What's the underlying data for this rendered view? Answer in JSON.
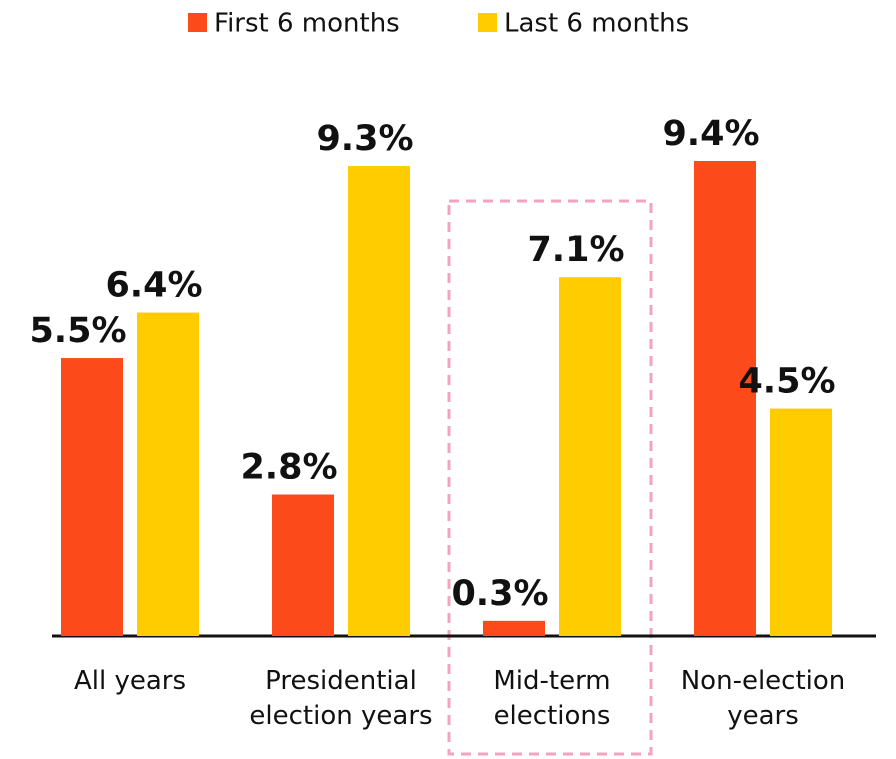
{
  "chart_data": {
    "type": "bar",
    "categories": [
      "All years",
      "Presidential election years",
      "Mid-term elections",
      "Non-election years"
    ],
    "series": [
      {
        "name": "First 6 months",
        "color": "#fc4a1a",
        "values": [
          5.5,
          2.8,
          0.3,
          9.4
        ],
        "value_labels": [
          "5.5%",
          "2.8%",
          "0.3%",
          "9.4%"
        ]
      },
      {
        "name": "Last 6 months",
        "color": "#ffcc00",
        "values": [
          6.4,
          9.3,
          7.1,
          4.5
        ],
        "value_labels": [
          "6.4%",
          "9.3%",
          "7.1%",
          "4.5%"
        ]
      }
    ]
  }
}
